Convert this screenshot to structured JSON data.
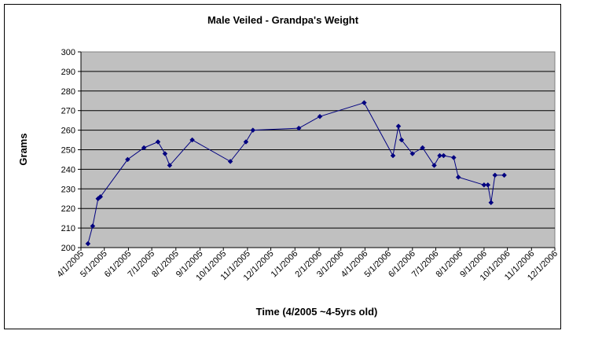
{
  "chart_data": {
    "type": "line",
    "title": "Male Veiled - Grandpa's Weight",
    "xlabel": "Time (4/2005 ~4-5yrs old)",
    "ylabel": "Grams",
    "ylim": [
      200,
      300
    ],
    "yticks": [
      200,
      210,
      220,
      230,
      240,
      250,
      260,
      270,
      280,
      290,
      300
    ],
    "xlim": [
      "2005-04-01",
      "2006-12-01"
    ],
    "xticks": [
      "4/1/2005",
      "5/1/2005",
      "6/1/2005",
      "7/1/2005",
      "8/1/2005",
      "9/1/2005",
      "10/1/2005",
      "11/1/2005",
      "12/1/2005",
      "1/1/2006",
      "2/1/2006",
      "3/1/2006",
      "4/1/2006",
      "5/1/2006",
      "6/1/2006",
      "7/1/2006",
      "8/1/2006",
      "9/1/2006",
      "10/1/2006",
      "11/1/2006",
      "12/1/2006"
    ],
    "grid": "horizontal",
    "plot_background": "#c0c0c0",
    "line_color": "#000080",
    "series": [
      {
        "x": [
          "2005-04-10",
          "2005-04-16",
          "2005-04-23",
          "2005-04-26",
          "2005-05-31",
          "2005-06-21",
          "2005-07-09",
          "2005-07-18",
          "2005-07-24",
          "2005-08-22",
          "2005-10-10",
          "2005-10-30",
          "2005-11-08",
          "2006-01-06",
          "2006-02-02",
          "2006-03-31",
          "2006-05-07",
          "2006-05-14",
          "2006-05-18",
          "2006-06-01",
          "2006-06-14",
          "2006-06-29",
          "2006-07-06",
          "2006-07-11",
          "2006-07-24",
          "2006-07-30",
          "2006-09-01",
          "2006-09-06",
          "2006-09-10",
          "2006-09-15",
          "2006-09-27"
        ],
        "values": [
          202,
          211,
          225,
          226,
          245,
          251,
          254,
          248,
          242,
          255,
          244,
          254,
          260,
          261,
          267,
          274,
          247,
          262,
          255,
          248,
          251,
          242,
          247,
          247,
          246,
          236,
          232,
          232,
          223,
          237,
          237
        ]
      }
    ]
  }
}
